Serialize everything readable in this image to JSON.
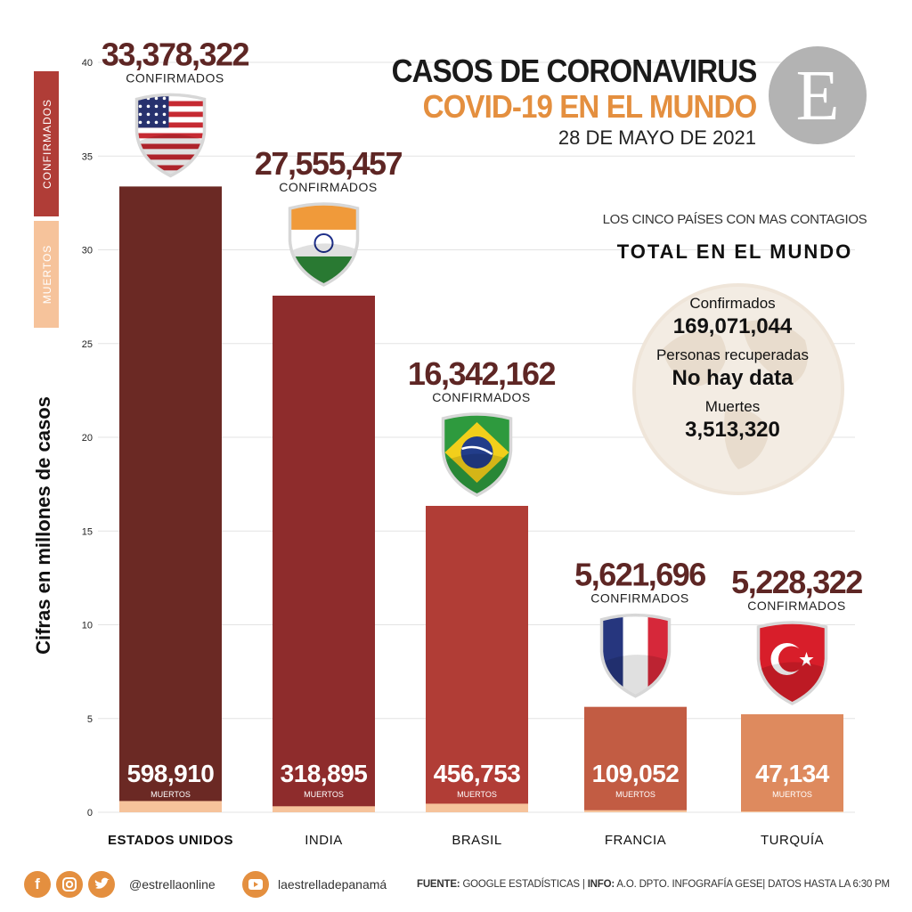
{
  "chart_data": {
    "type": "bar",
    "categories": [
      "ESTADOS UNIDOS",
      "INDIA",
      "BRASIL",
      "FRANCIA",
      "TURQUÍA"
    ],
    "series": [
      {
        "name": "CONFIRMADOS",
        "values": [
          33378322,
          27555457,
          16342162,
          5621696,
          5228322
        ],
        "labels": [
          "33,378,322",
          "27,555,457",
          "16,342,162",
          "5,621,696",
          "5,228,322"
        ],
        "label_suffix": "CONFIRMADOS"
      },
      {
        "name": "MUERTOS",
        "values": [
          598910,
          318895,
          456753,
          109052,
          47134
        ],
        "labels": [
          "598,910",
          "318,895",
          "456,753",
          "109,052",
          "47,134"
        ],
        "label_suffix": "MUERTOS"
      }
    ],
    "bar_colors": [
      "#6b2924",
      "#8e2c2c",
      "#b13d36",
      "#c25c43",
      "#de8a5e"
    ],
    "death_color": "#f6c39b",
    "flags": [
      "usa-flag",
      "india-flag",
      "brasil-flag",
      "francia-flag",
      "turquia-flag"
    ],
    "ylabel": "Cifras en millones de casos",
    "ylim": [
      0,
      40
    ],
    "yticks": [
      "0",
      "5",
      "10",
      "15",
      "20",
      "25",
      "30",
      "35",
      "40"
    ],
    "grid": true,
    "legend": {
      "position": "left",
      "items": [
        {
          "label": "CONFIRMADOS",
          "color": "#b03d37"
        },
        {
          "label": "MUERTOS",
          "color": "#f6c39b"
        }
      ]
    }
  },
  "header": {
    "title_line1": "CASOS DE CORONAVIRUS",
    "title_line2": "COVID-19 EN EL MUNDO",
    "date": "28 DE MAYO DE 2021",
    "logo_letter": "E"
  },
  "summary": {
    "subheading": "LOS CINCO PAÍSES CON MAS CONTAGIOS",
    "title": "TOTAL EN EL MUNDO",
    "confirmed_label": "Confirmados",
    "confirmed_value": "169,071,044",
    "recovered_label": "Personas recuperadas",
    "recovered_value": "No hay data",
    "deaths_label": "Muertes",
    "deaths_value": "3,513,320"
  },
  "footer": {
    "social_icons": [
      "facebook-icon",
      "instagram-icon",
      "twitter-icon"
    ],
    "handle": "@estrellaonline",
    "youtube_icon": "youtube-icon",
    "site": "laestrelladepanamá",
    "source_label": "FUENTE:",
    "source_text": "GOOGLE ESTADÍSTICAS |",
    "info_label": "INFO:",
    "info_text": "A.O. DPTO. INFOGRAFÍA GESE| DATOS HASTA LA 6:30 PM"
  }
}
